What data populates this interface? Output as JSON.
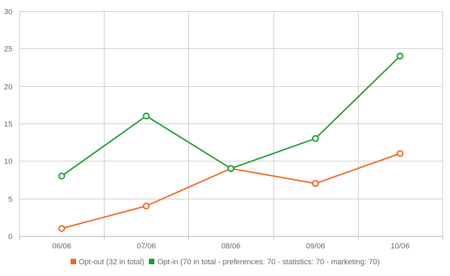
{
  "chart_data": {
    "type": "line",
    "title": "",
    "xlabel": "",
    "ylabel": "",
    "categories": [
      "06/06",
      "07/06",
      "08/06",
      "09/06",
      "10/06"
    ],
    "ylim": [
      0,
      30
    ],
    "y_ticks": [
      "0",
      "5",
      "10",
      "15",
      "20",
      "25",
      "30"
    ],
    "grid": true,
    "legend_position": "bottom",
    "series": [
      {
        "name": "Opt-out (32 in total)",
        "color": "#f26522",
        "values": [
          1,
          4,
          9,
          7,
          11
        ]
      },
      {
        "name": "Opt-in (70 in total - preferences: 70 - statistics: 70 - marketing: 70)",
        "color": "#1a9c2c",
        "values": [
          8,
          16,
          9,
          13,
          24
        ]
      }
    ]
  }
}
